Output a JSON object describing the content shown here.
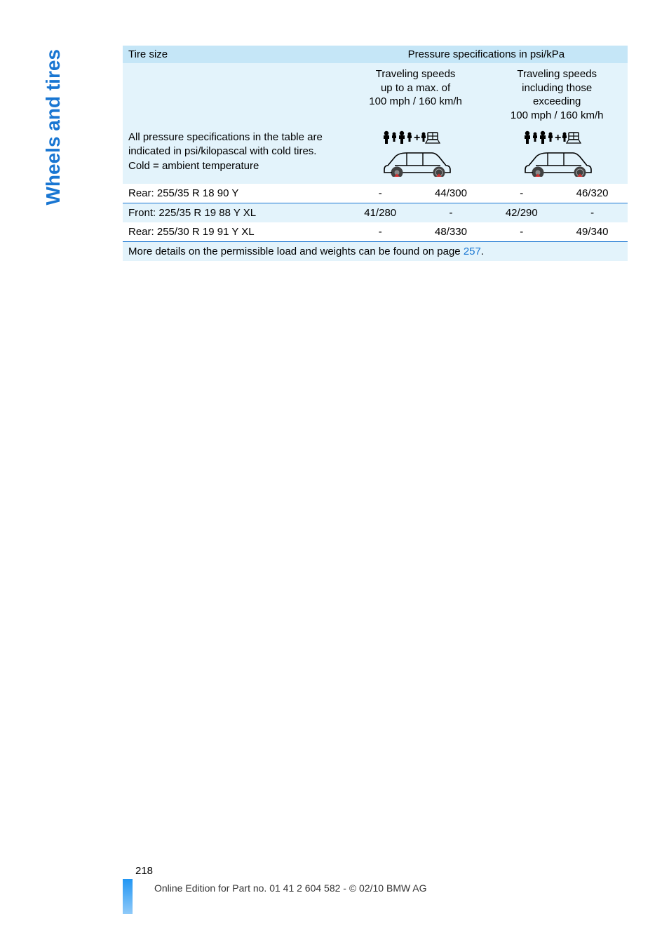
{
  "sidebar": {
    "label": "Wheels and tires"
  },
  "table": {
    "header": {
      "tire_size": "Tire size",
      "pressure_spec": "Pressure specifications in psi/kPa"
    },
    "subheader": {
      "left": "Traveling speeds\nup to a max. of\n100 mph / 160 km/h",
      "right": "Traveling speeds\nincluding those\nexceeding\n100 mph / 160 km/h"
    },
    "spec_note": "All pressure specifications in the table are indicated in psi/kilopascal with cold tires.\nCold = ambient temperature",
    "rows": [
      {
        "label": "Rear: 255/35 R 18 90 Y",
        "c1": "-",
        "c2": "44/300",
        "c3": "-",
        "c4": "46/320",
        "zebra": false,
        "divider": false
      },
      {
        "label": "Front: 225/35 R 19 88 Y XL",
        "c1": "41/280",
        "c2": "-",
        "c3": "42/290",
        "c4": "-",
        "zebra": true,
        "divider": true
      },
      {
        "label": "Rear: 255/30 R 19 91 Y XL",
        "c1": "-",
        "c2": "48/330",
        "c3": "-",
        "c4": "49/340",
        "zebra": false,
        "divider": false
      }
    ],
    "note_prefix": "More details on the permissible load and weights can be found on page ",
    "note_link": "257",
    "note_suffix": "."
  },
  "icons": {
    "people_color": "#000000",
    "car_stroke": "#000000",
    "wheel_fill": "#424242",
    "arrow_color": "#d32f2f"
  },
  "footer": {
    "page_number": "218",
    "edition": "Online Edition for Part no. 01 41 2 604 582 - © 02/10 BMW AG"
  }
}
